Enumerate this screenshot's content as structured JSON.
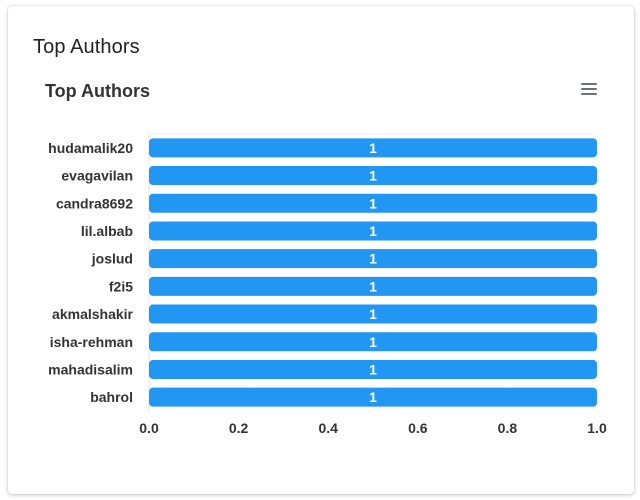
{
  "card": {
    "title": "Top Authors"
  },
  "menu": {
    "icon": "hamburger-menu-icon"
  },
  "colors": {
    "bar": "#2196f3",
    "bar_label": "#ffffff",
    "text": "#333333"
  },
  "chart_data": {
    "type": "bar",
    "orientation": "horizontal",
    "title": "Top Authors",
    "categories": [
      "hudamalik20",
      "evagavilan",
      "candra8692",
      "lil.albab",
      "joslud",
      "f2i5",
      "akmalshakir",
      "isha-rehman",
      "mahadisalim",
      "bahrol"
    ],
    "values": [
      1,
      1,
      1,
      1,
      1,
      1,
      1,
      1,
      1,
      1
    ],
    "xlim": [
      0,
      1
    ],
    "xticks": [
      "0.0",
      "0.2",
      "0.4",
      "0.6",
      "0.8",
      "1.0"
    ],
    "data_labels": true,
    "grid": false
  }
}
